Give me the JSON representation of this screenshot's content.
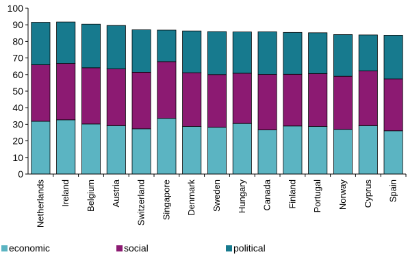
{
  "chart_data": {
    "type": "bar",
    "stacked": true,
    "categories": [
      "Netherlands",
      "Ireland",
      "Belgium",
      "Austria",
      "Switzerland",
      "Singapore",
      "Denmark",
      "Sweden",
      "Hungary",
      "Canada",
      "Finland",
      "Portugal",
      "Norway",
      "Cyprus",
      "Spain"
    ],
    "series": [
      {
        "name": "economic",
        "color": "#5bb4c2",
        "values": [
          31.8,
          32.7,
          30.2,
          29.2,
          27.3,
          33.6,
          28.7,
          28.2,
          30.5,
          26.6,
          29.0,
          28.7,
          26.9,
          29.2,
          26.1
        ]
      },
      {
        "name": "social",
        "color": "#8c1a72",
        "values": [
          34.1,
          34.0,
          33.9,
          34.2,
          34.1,
          34.2,
          32.4,
          31.8,
          30.3,
          33.5,
          31.2,
          31.9,
          32.1,
          33.0,
          31.3
        ]
      },
      {
        "name": "political",
        "color": "#177a8e",
        "values": [
          25.6,
          25.0,
          26.3,
          26.2,
          25.6,
          19.0,
          25.2,
          25.9,
          24.9,
          25.7,
          25.2,
          24.6,
          25.1,
          21.7,
          26.3
        ]
      }
    ],
    "ylim": [
      0,
      100
    ],
    "yticks": [
      0,
      10,
      20,
      30,
      40,
      50,
      60,
      70,
      80,
      90,
      100
    ],
    "title": "",
    "xlabel": "",
    "ylabel": "",
    "grid": false,
    "legend": "bottom"
  }
}
